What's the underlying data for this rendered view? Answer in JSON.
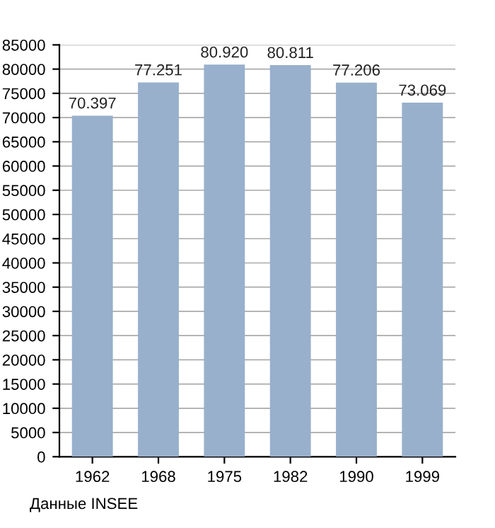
{
  "chart_data": {
    "type": "bar",
    "categories": [
      "1962",
      "1968",
      "1975",
      "1982",
      "1990",
      "1999"
    ],
    "values": [
      70397,
      77251,
      80920,
      80811,
      77206,
      73069
    ],
    "value_labels": [
      "70.397",
      "77.251",
      "80.920",
      "80.811",
      "77.206",
      "73.069"
    ],
    "color": "#98b0cc",
    "ylim": [
      0,
      85000
    ],
    "yticks": [
      0,
      5000,
      10000,
      15000,
      20000,
      25000,
      30000,
      35000,
      40000,
      45000,
      50000,
      55000,
      60000,
      65000,
      70000,
      75000,
      80000,
      85000
    ],
    "grid": "y",
    "annotations": [
      "Данные INSEE"
    ]
  }
}
